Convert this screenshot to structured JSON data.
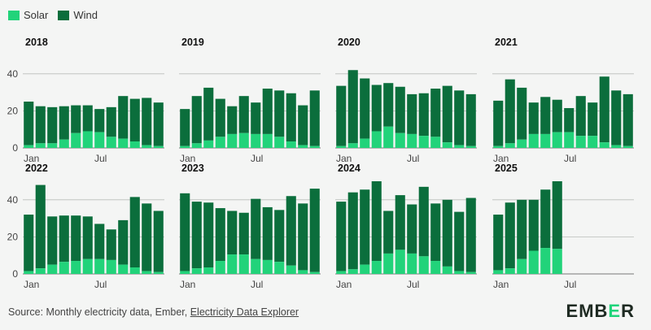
{
  "legend": {
    "solar_label": "Solar",
    "wind_label": "Wind",
    "solar_color": "#22d37a",
    "wind_color": "#0b6e3c"
  },
  "chart_data": {
    "type": "bar",
    "stacked": true,
    "series_order": [
      "Solar",
      "Wind"
    ],
    "y_ticks": [
      0,
      20,
      40
    ],
    "ylim": [
      0,
      50
    ],
    "x_tick_labels": [
      {
        "month_index": 0,
        "label": "Jan"
      },
      {
        "month_index": 6,
        "label": "Jul"
      }
    ],
    "panels": [
      {
        "year": "2018",
        "solar": [
          1.5,
          2.5,
          2.5,
          4.5,
          8,
          9,
          8.5,
          6,
          5,
          3.5,
          1.5,
          1
        ],
        "total": [
          25,
          22.5,
          22,
          22.5,
          23,
          23,
          21,
          22,
          28,
          26.5,
          27,
          24.5
        ]
      },
      {
        "year": "2019",
        "solar": [
          1,
          2.5,
          4,
          6,
          7.5,
          8,
          7.5,
          7.5,
          6,
          3.5,
          1.5,
          1
        ],
        "total": [
          21,
          28,
          32.5,
          26.5,
          22.5,
          28,
          24.5,
          32,
          31,
          29.5,
          23,
          31
        ]
      },
      {
        "year": "2020",
        "solar": [
          1,
          2.5,
          5,
          9,
          11.5,
          8,
          7.5,
          6.5,
          6,
          3,
          1.5,
          1
        ],
        "total": [
          33.5,
          42,
          37.5,
          34,
          35,
          33,
          29,
          29.5,
          32,
          33.5,
          31,
          29
        ]
      },
      {
        "year": "2021",
        "solar": [
          1,
          2.5,
          4.5,
          7.5,
          7.5,
          8.5,
          8.5,
          6.5,
          6.5,
          3,
          1.5,
          1
        ],
        "total": [
          25.5,
          37,
          32.5,
          24.5,
          27.5,
          26,
          21.5,
          28,
          24.5,
          38.5,
          31,
          29
        ]
      },
      {
        "year": "2022",
        "solar": [
          1.5,
          3,
          5,
          6.5,
          7,
          8,
          8,
          7.5,
          5,
          3.5,
          1.5,
          1
        ],
        "total": [
          32,
          48,
          31,
          31.5,
          31.5,
          31,
          27,
          24,
          29,
          41.5,
          38,
          34
        ]
      },
      {
        "year": "2023",
        "solar": [
          1.5,
          3,
          3.5,
          7,
          10.5,
          10.5,
          8,
          7.5,
          6.5,
          4.5,
          2,
          1
        ],
        "total": [
          43.5,
          39,
          38.5,
          35.5,
          34,
          33,
          40.5,
          36,
          34.5,
          42,
          38,
          46
        ]
      },
      {
        "year": "2024",
        "solar": [
          1.5,
          2.5,
          5,
          7,
          11,
          13,
          11,
          9.5,
          7,
          4,
          1.5,
          1
        ],
        "total": [
          39,
          44,
          45.5,
          50,
          34,
          42.5,
          37.5,
          47,
          38,
          40,
          33.5,
          41
        ]
      },
      {
        "year": "2025",
        "solar": [
          2,
          3,
          8,
          12.5,
          14,
          13.5
        ],
        "total": [
          32,
          38.5,
          40,
          40,
          45.5,
          50
        ]
      }
    ]
  },
  "footer": {
    "source_prefix": "Source: Monthly electricity data, Ember, ",
    "source_link": "Electricity Data Explorer"
  },
  "logo": {
    "part1": "EMB",
    "part2": "E",
    "part3": "R"
  }
}
